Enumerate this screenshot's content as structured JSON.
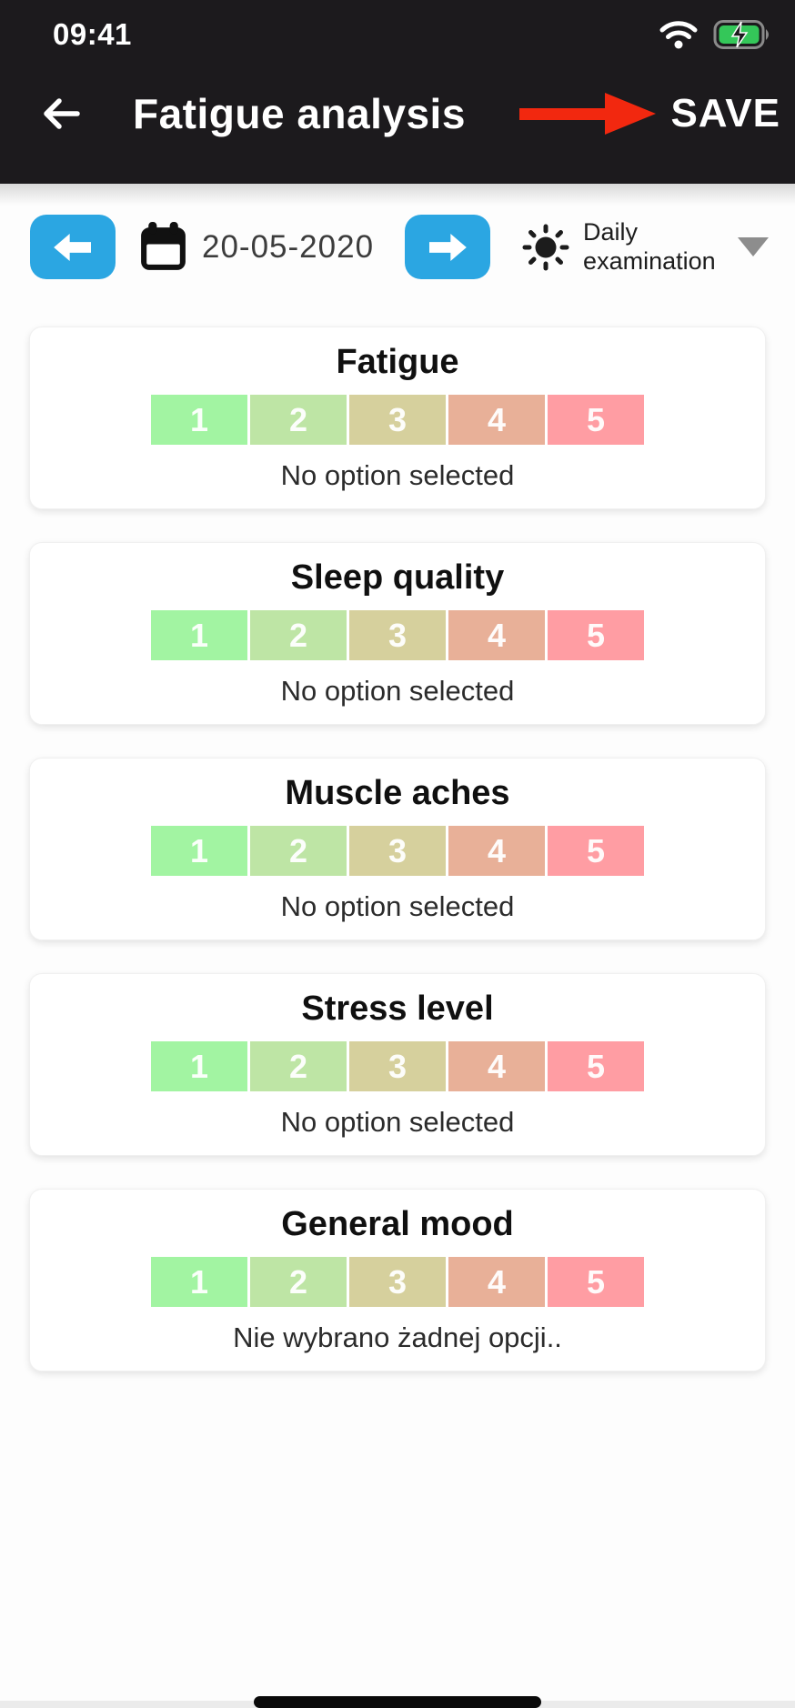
{
  "status_bar": {
    "time": "09:41",
    "wifi_icon": "wifi-icon",
    "battery_icon": "battery-charging-icon"
  },
  "header": {
    "title": "Fatigue analysis",
    "save_label": "SAVE"
  },
  "toolbar": {
    "date": "20-05-2020",
    "exam_type": "Daily examination"
  },
  "scale": {
    "options": [
      {
        "value": "1",
        "color": "#a2f4a2"
      },
      {
        "value": "2",
        "color": "#bee5a5"
      },
      {
        "value": "3",
        "color": "#d6d09d"
      },
      {
        "value": "4",
        "color": "#e8b098"
      },
      {
        "value": "5",
        "color": "#ff9da3"
      }
    ]
  },
  "cards": [
    {
      "title": "Fatigue",
      "caption": "No option selected"
    },
    {
      "title": "Sleep quality",
      "caption": "No option selected"
    },
    {
      "title": "Muscle aches",
      "caption": "No option selected"
    },
    {
      "title": "Stress level",
      "caption": "No option selected"
    },
    {
      "title": "General mood",
      "caption": "Nie wybrano żadnej opcji.."
    }
  ],
  "colors": {
    "accent_blue": "#2ba6e2",
    "header_bg": "#1c1a1d",
    "annotation_red": "#f2280f",
    "battery_green": "#34c759"
  }
}
